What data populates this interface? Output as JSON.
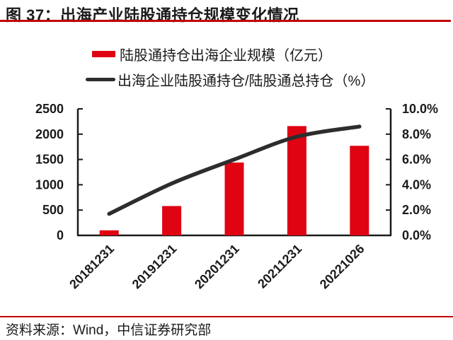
{
  "header": {
    "title": "图 37：出海产业陆股通持仓规模变化情况"
  },
  "footer": {
    "source": "资料来源：Wind，中信证券研究部"
  },
  "colors": {
    "rule_red": "#C00000",
    "bar_red": "#E00413",
    "line_dark": "#2D2D2D",
    "axis": "#1a1a1a"
  },
  "chart_data": {
    "type": "bar",
    "subtype": "bar-line-combo",
    "categories": [
      "20181231",
      "20191231",
      "20201231",
      "20211231",
      "20221026"
    ],
    "series": [
      {
        "name": "陆股通持仓出海企业规模（亿元）",
        "type": "bar",
        "axis": "left",
        "color": "#E00413",
        "values": [
          100,
          580,
          1440,
          2160,
          1770
        ]
      },
      {
        "name": "出海企业陆股通持仓/陆股通总持仓（%）",
        "type": "line",
        "axis": "right",
        "color": "#2D2D2D",
        "values": [
          1.7,
          4.1,
          6.0,
          7.8,
          8.6
        ]
      }
    ],
    "y_left": {
      "min": 0,
      "max": 2500,
      "tick_values": [
        0,
        500,
        1000,
        1500,
        2000,
        2500
      ],
      "ticks": [
        "0",
        "500",
        "1000",
        "1500",
        "2000",
        "2500"
      ]
    },
    "y_right": {
      "min": 0,
      "max": 10,
      "tick_values": [
        0,
        2,
        4,
        6,
        8,
        10
      ],
      "ticks": [
        "0.0%",
        "2.0%",
        "4.0%",
        "6.0%",
        "8.0%",
        "10.0%"
      ]
    },
    "grid": false,
    "legend_position": "top",
    "x_label_rotation": -45
  }
}
